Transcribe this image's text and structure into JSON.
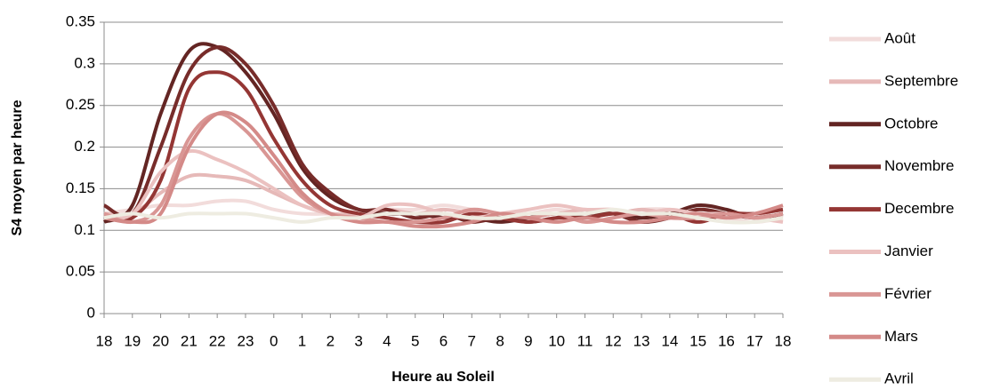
{
  "chart_data": {
    "type": "line",
    "x_label": "Heure au Soleil",
    "y_label": "S4 moyen par heure",
    "categories": [
      "18",
      "19",
      "20",
      "21",
      "22",
      "23",
      "0",
      "1",
      "2",
      "3",
      "4",
      "5",
      "6",
      "7",
      "8",
      "9",
      "10",
      "11",
      "12",
      "13",
      "14",
      "15",
      "16",
      "17",
      "18"
    ],
    "ylim": [
      0,
      0.35
    ],
    "yticks": [
      0,
      0.05,
      0.1,
      0.15,
      0.2,
      0.25,
      0.3,
      0.35
    ],
    "grid": true,
    "legend": "right",
    "series": [
      {
        "name": "Août",
        "color": "#f2dcdb",
        "values": [
          0.12,
          0.125,
          0.13,
          0.13,
          0.135,
          0.135,
          0.125,
          0.12,
          0.12,
          0.12,
          0.125,
          0.125,
          0.13,
          0.125,
          0.12,
          0.12,
          0.125,
          0.12,
          0.12,
          0.125,
          0.125,
          0.12,
          0.115,
          0.11,
          0.115
        ]
      },
      {
        "name": "Septembre",
        "color": "#e6b9b8",
        "values": [
          0.12,
          0.12,
          0.145,
          0.165,
          0.165,
          0.16,
          0.145,
          0.13,
          0.12,
          0.12,
          0.125,
          0.12,
          0.125,
          0.12,
          0.115,
          0.12,
          0.12,
          0.125,
          0.12,
          0.125,
          0.12,
          0.12,
          0.115,
          0.12,
          0.115
        ]
      },
      {
        "name": "Octobre",
        "color": "#632523",
        "values": [
          0.11,
          0.13,
          0.24,
          0.315,
          0.32,
          0.29,
          0.24,
          0.175,
          0.14,
          0.125,
          0.12,
          0.12,
          0.115,
          0.115,
          0.11,
          0.115,
          0.12,
          0.115,
          0.12,
          0.115,
          0.12,
          0.13,
          0.125,
          0.115,
          0.12
        ]
      },
      {
        "name": "Novembre",
        "color": "#772c2a",
        "values": [
          0.13,
          0.12,
          0.2,
          0.29,
          0.32,
          0.3,
          0.25,
          0.18,
          0.145,
          0.125,
          0.125,
          0.115,
          0.12,
          0.11,
          0.115,
          0.11,
          0.115,
          0.12,
          0.12,
          0.11,
          0.115,
          0.125,
          0.12,
          0.115,
          0.12
        ]
      },
      {
        "name": "Decembre",
        "color": "#943634",
        "values": [
          0.115,
          0.115,
          0.16,
          0.27,
          0.29,
          0.27,
          0.21,
          0.16,
          0.13,
          0.12,
          0.115,
          0.11,
          0.11,
          0.12,
          0.115,
          0.11,
          0.115,
          0.115,
          0.12,
          0.12,
          0.12,
          0.11,
          0.12,
          0.12,
          0.125
        ]
      },
      {
        "name": "Janvier",
        "color": "#ebc1c0",
        "values": [
          0.115,
          0.12,
          0.17,
          0.195,
          0.185,
          0.17,
          0.15,
          0.13,
          0.12,
          0.115,
          0.13,
          0.13,
          0.12,
          0.115,
          0.12,
          0.125,
          0.13,
          0.125,
          0.125,
          0.12,
          0.125,
          0.12,
          0.12,
          0.115,
          0.11
        ]
      },
      {
        "name": "Février",
        "color": "#d99694",
        "values": [
          0.12,
          0.11,
          0.13,
          0.21,
          0.24,
          0.22,
          0.18,
          0.14,
          0.12,
          0.115,
          0.11,
          0.11,
          0.115,
          0.125,
          0.12,
          0.115,
          0.12,
          0.11,
          0.115,
          0.12,
          0.115,
          0.115,
          0.12,
          0.115,
          0.12
        ]
      },
      {
        "name": "Mars",
        "color": "#d48a88",
        "values": [
          0.115,
          0.11,
          0.12,
          0.2,
          0.24,
          0.23,
          0.19,
          0.145,
          0.12,
          0.11,
          0.11,
          0.105,
          0.105,
          0.11,
          0.12,
          0.115,
          0.11,
          0.115,
          0.11,
          0.11,
          0.115,
          0.12,
          0.115,
          0.12,
          0.13
        ]
      },
      {
        "name": "Avril",
        "color": "#eeece1",
        "values": [
          0.115,
          0.12,
          0.115,
          0.12,
          0.12,
          0.12,
          0.115,
          0.11,
          0.115,
          0.115,
          0.12,
          0.12,
          0.12,
          0.115,
          0.115,
          0.12,
          0.12,
          0.12,
          0.125,
          0.12,
          0.12,
          0.115,
          0.11,
          0.11,
          0.115
        ]
      }
    ]
  }
}
